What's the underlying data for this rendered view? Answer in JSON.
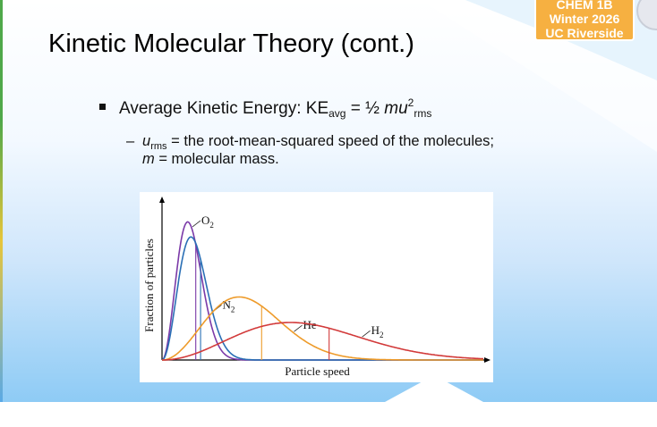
{
  "header": {
    "title": "Kinetic Molecular Theory (cont.)",
    "badge": {
      "course": "CHEM 1B",
      "term": "Winter 2026",
      "school": "UC Riverside"
    }
  },
  "bullet": {
    "lead": "Average Kinetic Energy: KE",
    "ke_sub": "avg",
    "equals": " = ½ ",
    "mu": "mu",
    "sq": "2",
    "rms_sub": "rms"
  },
  "sub_bullet": {
    "dash": "–",
    "u_var": "u",
    "u_sub": "rms",
    "line1_rest": " = the root-mean-squared speed of the molecules;",
    "m_var": "m",
    "line2_rest": " = molecular mass."
  },
  "chart_data": {
    "type": "line",
    "xlabel": "Particle speed",
    "ylabel": "Fraction of particles",
    "xlim": [
      0,
      100
    ],
    "ylim": [
      0,
      100
    ],
    "series": [
      {
        "name": "O",
        "name_sub": "2",
        "color": "#7b3aa8",
        "peak_x": 8,
        "peak_y": 92,
        "rms_x": 10.5
      },
      {
        "name": "N",
        "name_sub": "2",
        "color": "#2a6fb5",
        "peak_x": 9,
        "peak_y": 82,
        "rms_x": 12
      },
      {
        "name": "He",
        "name_sub": "",
        "color": "#ee9b2a",
        "peak_x": 24,
        "peak_y": 42,
        "rms_x": 31
      },
      {
        "name": "H",
        "name_sub": "2",
        "color": "#d23a3a",
        "peak_x": 40,
        "peak_y": 25,
        "rms_x": 52
      }
    ]
  }
}
